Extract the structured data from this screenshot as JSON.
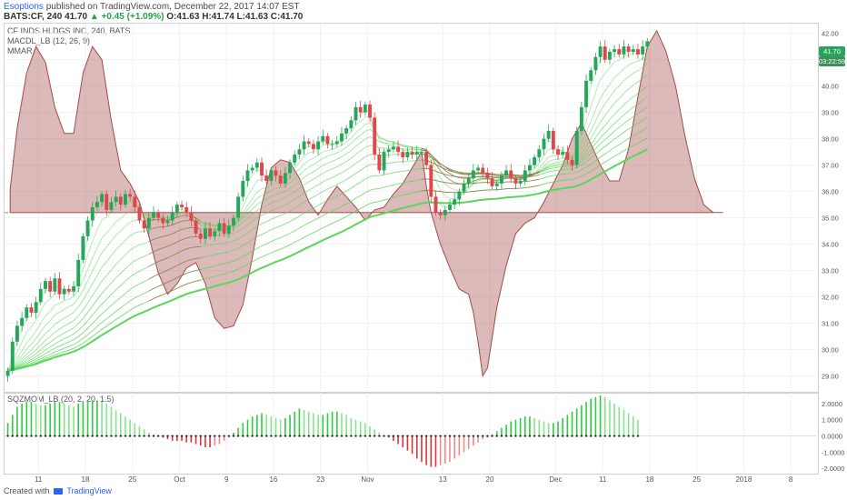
{
  "header": {
    "author": "Esoptions",
    "published": "published on TradingView.com, December 22, 2017 14:07 EST",
    "symbol_line_a": "BATS:CF, 240",
    "last": "41.70",
    "change": "+0.45 (+1.09%)",
    "ohlc": "O:41.63 H:41.74 L:41.63 C:41.70"
  },
  "legend": {
    "title": "CF INDS HLDGS INC, 240, BATS",
    "macd": "MACDL_LB (12, 26, 9)",
    "mmar": "MMAR",
    "sqz": "SQZMOM_LB (20, 2, 20, 1.5)"
  },
  "price_tag": "41.70",
  "time_tag": "03:22:59",
  "footer": {
    "created": "Created with",
    "brand": "TradingView"
  },
  "colors": {
    "up": "#26a65b",
    "down": "#e0474c",
    "fill": "#a44a4a",
    "ema_fast": "#5ad75a",
    "ema_slow": "#b13a3a"
  },
  "chart_data": [
    {
      "type": "candlestick",
      "symbol": "BATS:CF",
      "interval": "240",
      "y_ticks": [
        "29.00",
        "30.00",
        "31.00",
        "32.00",
        "33.00",
        "34.00",
        "35.00",
        "36.00",
        "37.00",
        "38.00",
        "39.00",
        "40.00",
        "41.00",
        "42.00"
      ],
      "ylim": [
        28.5,
        42.3
      ],
      "x_ticks": [
        "11",
        "18",
        "25",
        "Oct",
        "9",
        "16",
        "23",
        "Nov",
        "13",
        "20",
        "Dec",
        "11",
        "18",
        "25",
        "2018",
        "8"
      ],
      "x_tick_slot": [
        6.5,
        16.5,
        26.5,
        36.5,
        46.5,
        56.5,
        66.5,
        76.5,
        92.5,
        102.5,
        116.5,
        126.5,
        136.5,
        146.5,
        156.5,
        166.5
      ],
      "n_slots": 172,
      "close": [
        29.2,
        30.3,
        30.9,
        31.2,
        31.6,
        31.4,
        31.8,
        32.3,
        32.6,
        32.2,
        32.7,
        32.1,
        32.3,
        32.2,
        32.4,
        33.4,
        34.3,
        34.9,
        35.4,
        35.6,
        35.9,
        35.3,
        35.6,
        35.8,
        35.5,
        35.9,
        35.8,
        35.4,
        34.9,
        34.6,
        35.0,
        35.2,
        35.0,
        34.8,
        34.9,
        35.2,
        35.5,
        35.4,
        35.2,
        34.9,
        34.4,
        34.2,
        34.6,
        34.3,
        34.5,
        34.8,
        34.4,
        34.7,
        35.0,
        35.8,
        36.4,
        36.8,
        36.9,
        37.1,
        36.6,
        36.4,
        36.8,
        36.6,
        36.3,
        36.7,
        37.1,
        37.4,
        37.6,
        37.9,
        37.8,
        37.6,
        37.9,
        38.1,
        37.8,
        37.8,
        37.9,
        38.2,
        38.4,
        38.7,
        39.2,
        39.0,
        39.3,
        38.8,
        37.4,
        36.8,
        37.5,
        37.6,
        37.7,
        37.5,
        37.3,
        37.5,
        37.4,
        37.5,
        37.5,
        37.0,
        35.8,
        35.2,
        35.1,
        35.3,
        35.5,
        35.7,
        36.0,
        36.3,
        36.5,
        36.8,
        36.9,
        36.7,
        36.5,
        36.2,
        36.3,
        36.6,
        36.8,
        36.5,
        36.3,
        36.4,
        36.8,
        37.0,
        37.3,
        37.6,
        38.0,
        38.3,
        37.6,
        37.4,
        37.5,
        37.2,
        37.0,
        38.3,
        39.2,
        40.2,
        40.6,
        41.1,
        41.5,
        41.0,
        41.3,
        41.4,
        41.2,
        41.5,
        41.3,
        41.4,
        41.2,
        41.5,
        41.7
      ],
      "macd_envelope_pts": [
        [
          0.5,
          36.1
        ],
        [
          2,
          38.4
        ],
        [
          4,
          40.5
        ],
        [
          6,
          41.5
        ],
        [
          8,
          40.9
        ],
        [
          10,
          39.2
        ],
        [
          12,
          38.2
        ],
        [
          14,
          38.2
        ],
        [
          16,
          40.5
        ],
        [
          18,
          41.5
        ],
        [
          20,
          41.0
        ],
        [
          22,
          38.7
        ],
        [
          24,
          36.8
        ],
        [
          26,
          36.3
        ],
        [
          28,
          35.6
        ],
        [
          30,
          34.3
        ],
        [
          32,
          32.9
        ],
        [
          34,
          32.1
        ],
        [
          36,
          32.5
        ],
        [
          38,
          33.1
        ],
        [
          40,
          33.3
        ],
        [
          42,
          32.5
        ],
        [
          44,
          31.2
        ],
        [
          46,
          30.8
        ],
        [
          48,
          30.9
        ],
        [
          50,
          31.7
        ],
        [
          52,
          33.5
        ],
        [
          54,
          35.5
        ],
        [
          56,
          36.9
        ],
        [
          58,
          37.2
        ],
        [
          60,
          37.1
        ],
        [
          62,
          36.5
        ],
        [
          64,
          35.6
        ],
        [
          66,
          35.1
        ],
        [
          68,
          35.7
        ],
        [
          70,
          36.2
        ],
        [
          72,
          35.8
        ],
        [
          74,
          35.4
        ],
        [
          76,
          34.9
        ],
        [
          78,
          35.3
        ],
        [
          80,
          35.4
        ],
        [
          82,
          35.9
        ],
        [
          84,
          36.3
        ],
        [
          86,
          36.9
        ],
        [
          88,
          37.5
        ],
        [
          89,
          36.2
        ],
        [
          90,
          35.2
        ],
        [
          92,
          34.0
        ],
        [
          94,
          33.1
        ],
        [
          96,
          32.3
        ],
        [
          98,
          32.1
        ],
        [
          99,
          31.4
        ],
        [
          100,
          30.3
        ],
        [
          101,
          29.0
        ],
        [
          102,
          29.3
        ],
        [
          104,
          31.6
        ],
        [
          106,
          33.2
        ],
        [
          108,
          34.4
        ],
        [
          110,
          34.8
        ],
        [
          112,
          35.0
        ],
        [
          114,
          35.6
        ],
        [
          116,
          36.3
        ],
        [
          118,
          37.0
        ],
        [
          120,
          38.0
        ],
        [
          122,
          38.6
        ],
        [
          124,
          37.8
        ],
        [
          126,
          37.0
        ],
        [
          128,
          36.4
        ],
        [
          130,
          36.4
        ],
        [
          132,
          37.6
        ],
        [
          134,
          39.6
        ],
        [
          136,
          41.5
        ],
        [
          138,
          42.1
        ],
        [
          140,
          41.3
        ],
        [
          142,
          40.0
        ],
        [
          144,
          38.1
        ],
        [
          146,
          36.5
        ],
        [
          148,
          35.5
        ],
        [
          150,
          35.2
        ],
        [
          152,
          35.2
        ]
      ],
      "macd_baseline": 35.2,
      "ema_slow_segments": [
        [
          30,
          41
        ],
        [
          88,
          113
        ]
      ]
    },
    {
      "type": "bar",
      "name": "SQZMOM_LB",
      "y_ticks": [
        "-2.0000",
        "-1.0000",
        "0.0000",
        "1.0000",
        "2.0000"
      ],
      "ylim": [
        -2.1,
        2.5
      ],
      "values": [
        0.8,
        1.3,
        1.8,
        2.0,
        2.1,
        2.1,
        2.0,
        1.9,
        1.9,
        2.0,
        2.1,
        2.1,
        2.0,
        1.9,
        1.8,
        2.0,
        2.1,
        2.2,
        2.2,
        2.2,
        2.1,
        2.0,
        1.8,
        1.6,
        1.4,
        1.2,
        1.0,
        0.8,
        0.6,
        0.4,
        0.2,
        0.1,
        0.0,
        -0.1,
        -0.2,
        -0.3,
        -0.3,
        -0.3,
        -0.4,
        -0.4,
        -0.5,
        -0.6,
        -0.7,
        -0.7,
        -0.6,
        -0.5,
        -0.3,
        -0.1,
        0.2,
        0.5,
        0.8,
        1.0,
        1.2,
        1.3,
        1.4,
        1.3,
        1.2,
        1.1,
        1.0,
        1.1,
        1.3,
        1.5,
        1.7,
        1.6,
        1.5,
        1.4,
        1.3,
        1.3,
        1.4,
        1.5,
        1.5,
        1.4,
        1.3,
        1.1,
        1.0,
        0.9,
        0.8,
        0.6,
        0.4,
        0.2,
        0.0,
        -0.1,
        -0.3,
        -0.5,
        -0.7,
        -0.9,
        -1.1,
        -1.4,
        -1.6,
        -1.8,
        -1.9,
        -1.9,
        -1.8,
        -1.7,
        -1.6,
        -1.4,
        -1.2,
        -1.0,
        -0.8,
        -0.6,
        -0.4,
        -0.2,
        -0.1,
        0.1,
        0.3,
        0.5,
        0.7,
        0.9,
        1.0,
        1.1,
        1.2,
        1.2,
        1.1,
        1.0,
        0.9,
        0.8,
        0.8,
        0.9,
        1.1,
        1.3,
        1.5,
        1.7,
        1.9,
        2.1,
        2.3,
        2.4,
        2.5,
        2.4,
        2.2,
        2.0,
        1.8,
        1.6,
        1.4,
        1.2,
        1.0
      ]
    }
  ]
}
